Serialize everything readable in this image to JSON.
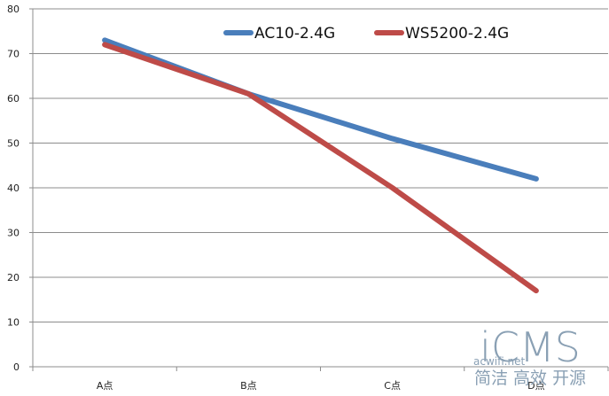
{
  "chart_data": {
    "type": "line",
    "categories": [
      "A点",
      "B点",
      "C点",
      "D点"
    ],
    "ylim": [
      0,
      80
    ],
    "yticks": [
      0,
      10,
      20,
      30,
      40,
      50,
      60,
      70,
      80
    ],
    "grid": true,
    "legend_position": "top-right",
    "series": [
      {
        "name": "AC10-2.4G",
        "color": "#4a7ebb",
        "values": [
          73,
          61,
          51,
          42
        ]
      },
      {
        "name": "WS5200-2.4G",
        "color": "#be4b48",
        "values": [
          72,
          61,
          40,
          17
        ]
      }
    ]
  },
  "watermark": {
    "site": "acwifi.net",
    "logo": "iCMS",
    "slogan": "简洁 高效 开源"
  }
}
